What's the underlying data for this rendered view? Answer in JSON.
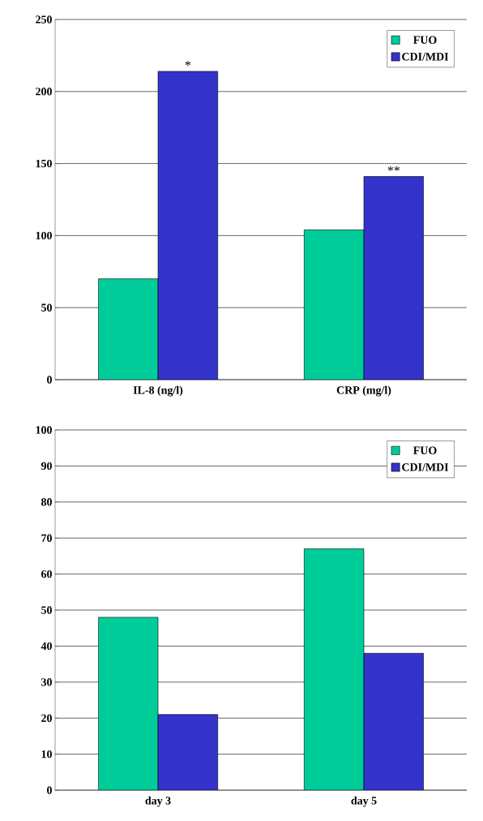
{
  "chart_data": [
    {
      "type": "bar",
      "categories": [
        "IL-8 (ng/l)",
        "CRP (mg/l)"
      ],
      "series": [
        {
          "name": "FUO",
          "color": "#00cc99",
          "values": [
            70,
            104
          ]
        },
        {
          "name": "CDI/MDI",
          "color": "#3333cc",
          "values": [
            214,
            141
          ]
        }
      ],
      "ylim": [
        0,
        250
      ],
      "yticks": [
        0,
        50,
        100,
        150,
        200,
        250
      ],
      "grid": "y",
      "legend": "top right",
      "annotations": [
        {
          "text": "*",
          "x": "IL-8 (ng/l)",
          "y": 214
        },
        {
          "text": "**",
          "x": "CRP (mg/l)",
          "y": 141
        }
      ]
    },
    {
      "type": "bar",
      "categories": [
        "day 3",
        "day 5"
      ],
      "series": [
        {
          "name": "FUO",
          "color": "#00cc99",
          "values": [
            48,
            67
          ]
        },
        {
          "name": "CDI/MDI",
          "color": "#3333cc",
          "values": [
            21,
            38
          ]
        }
      ],
      "ylim": [
        0,
        100
      ],
      "yticks": [
        0,
        10,
        20,
        30,
        40,
        50,
        60,
        70,
        80,
        90,
        100
      ],
      "grid": "y",
      "legend": "top right"
    }
  ]
}
